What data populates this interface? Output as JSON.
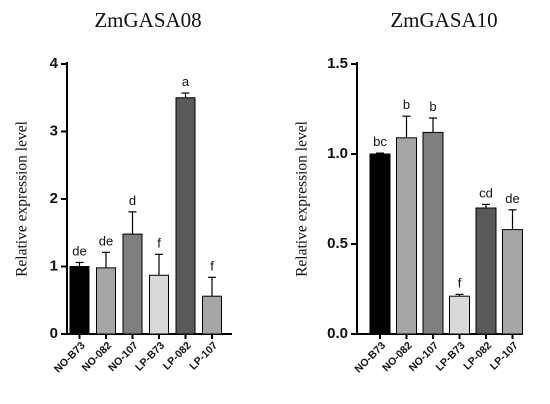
{
  "chart_data": [
    {
      "type": "bar",
      "title": "ZmGASA08",
      "ylabel": "Relative expression level",
      "xlabel": "",
      "categories": [
        "NO-B73",
        "NO-082",
        "NO-107",
        "LP-B73",
        "LP-082",
        "LP-107"
      ],
      "values": [
        1.0,
        0.98,
        1.48,
        0.87,
        3.5,
        0.56
      ],
      "errors": [
        0.06,
        0.23,
        0.33,
        0.31,
        0.07,
        0.28
      ],
      "significance": [
        "de",
        "de",
        "d",
        "f",
        "a",
        "f"
      ],
      "colors": [
        "#000000",
        "#a6a6a6",
        "#7f7f7f",
        "#d9d9d9",
        "#595959",
        "#a6a6a6"
      ],
      "ylim": [
        0,
        4
      ],
      "yticks": [
        "0",
        "1",
        "2",
        "3",
        "4"
      ],
      "grid": false,
      "legend": "none"
    },
    {
      "type": "bar",
      "title": "ZmGASA10",
      "ylabel": "Relative expression level",
      "xlabel": "",
      "categories": [
        "NO-B73",
        "NO-082",
        "NO-107",
        "LP-B73",
        "LP-082",
        "LP-107"
      ],
      "values": [
        1.0,
        1.09,
        1.12,
        0.21,
        0.7,
        0.58
      ],
      "errors": [
        0.005,
        0.12,
        0.08,
        0.01,
        0.02,
        0.11
      ],
      "significance": [
        "bc",
        "b",
        "b",
        "f",
        "cd",
        "de"
      ],
      "colors": [
        "#000000",
        "#a6a6a6",
        "#7f7f7f",
        "#d9d9d9",
        "#595959",
        "#a6a6a6"
      ],
      "ylim": [
        0,
        1.5
      ],
      "yticks": [
        "0.0",
        "0.5",
        "1.0",
        "1.5"
      ],
      "grid": false,
      "legend": "none"
    }
  ]
}
